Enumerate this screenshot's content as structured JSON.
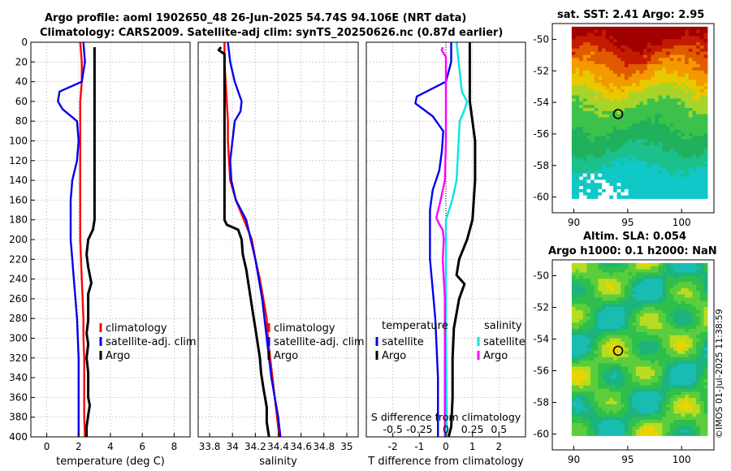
{
  "header": {
    "title_line1": "Argo profile: aoml 1902650_48 26-Jun-2025 54.74S 94.106E (NRT data)",
    "title_line2": "Climatology: CARS2009. Satellite-adj clim: synTS_20250626.nc (0.87d earlier)"
  },
  "map_sst": {
    "title": "sat. SST: 2.41 Argo: 2.95"
  },
  "map_sla": {
    "title_line1": "Altim. SLA: 0.054",
    "title_line2": "Argo h1000: 0.1 h2000: NaN"
  },
  "footer": {
    "stamp": "©IMOS 01-Jul-2025 11:38:59"
  },
  "chart_data": [
    {
      "type": "line",
      "id": "temperature",
      "xlabel": "temperature (deg C)",
      "ylabel": "",
      "xlim": [
        -1,
        9
      ],
      "ylim": [
        400,
        0
      ],
      "x_ticks": [
        0,
        2,
        4,
        6,
        8
      ],
      "y_ticks": [
        0,
        20,
        40,
        60,
        80,
        100,
        120,
        140,
        160,
        180,
        200,
        220,
        240,
        260,
        280,
        300,
        320,
        340,
        360,
        380,
        400
      ],
      "grid": true,
      "legend": [
        "climatology",
        "satellite-adj. clim",
        "Argo"
      ],
      "series": [
        {
          "name": "climatology",
          "color": "#ff0000",
          "points": [
            [
              2.1,
              0
            ],
            [
              2.2,
              20
            ],
            [
              2.2,
              40
            ],
            [
              2.1,
              60
            ],
            [
              2.1,
              80
            ],
            [
              2.1,
              100
            ],
            [
              2.1,
              120
            ],
            [
              2.1,
              140
            ],
            [
              2.1,
              160
            ],
            [
              2.1,
              180
            ],
            [
              2.1,
              200
            ],
            [
              2.15,
              220
            ],
            [
              2.2,
              240
            ],
            [
              2.25,
              260
            ],
            [
              2.3,
              280
            ],
            [
              2.3,
              300
            ],
            [
              2.35,
              320
            ],
            [
              2.35,
              340
            ],
            [
              2.35,
              360
            ],
            [
              2.35,
              380
            ],
            [
              2.4,
              400
            ]
          ]
        },
        {
          "name": "satellite-adj. clim",
          "color": "#0000ee",
          "points": [
            [
              2.3,
              0
            ],
            [
              2.4,
              20
            ],
            [
              2.2,
              40
            ],
            [
              0.8,
              50
            ],
            [
              0.7,
              60
            ],
            [
              1.0,
              68
            ],
            [
              1.9,
              80
            ],
            [
              2.0,
              100
            ],
            [
              1.9,
              120
            ],
            [
              1.6,
              140
            ],
            [
              1.5,
              160
            ],
            [
              1.5,
              180
            ],
            [
              1.5,
              200
            ],
            [
              1.6,
              220
            ],
            [
              1.7,
              240
            ],
            [
              1.8,
              260
            ],
            [
              1.9,
              280
            ],
            [
              1.95,
              300
            ],
            [
              2.0,
              320
            ],
            [
              2.0,
              340
            ],
            [
              2.0,
              360
            ],
            [
              2.0,
              380
            ],
            [
              2.0,
              400
            ]
          ]
        },
        {
          "name": "Argo",
          "color": "#000000",
          "points": [
            [
              3.0,
              5
            ],
            [
              3.0,
              20
            ],
            [
              3.0,
              40
            ],
            [
              3.0,
              60
            ],
            [
              3.0,
              80
            ],
            [
              3.0,
              100
            ],
            [
              3.0,
              120
            ],
            [
              3.0,
              140
            ],
            [
              3.0,
              160
            ],
            [
              3.0,
              180
            ],
            [
              2.9,
              190
            ],
            [
              2.6,
              200
            ],
            [
              2.5,
              215
            ],
            [
              2.6,
              228
            ],
            [
              2.7,
              236
            ],
            [
              2.8,
              244
            ],
            [
              2.6,
              255
            ],
            [
              2.6,
              270
            ],
            [
              2.6,
              282
            ],
            [
              2.5,
              295
            ],
            [
              2.6,
              306
            ],
            [
              2.5,
              320
            ],
            [
              2.6,
              335
            ],
            [
              2.6,
              350
            ],
            [
              2.6,
              360
            ],
            [
              2.7,
              368
            ],
            [
              2.6,
              378
            ],
            [
              2.5,
              390
            ],
            [
              2.5,
              400
            ]
          ]
        }
      ]
    },
    {
      "type": "line",
      "id": "salinity",
      "xlabel": "salinity",
      "ylabel": "",
      "xlim": [
        33.7,
        35.1
      ],
      "ylim": [
        400,
        0
      ],
      "x_ticks": [
        33.8,
        34,
        34.2,
        34.4,
        34.6,
        34.8,
        35
      ],
      "x_tick_labels": [
        "33.8",
        "34",
        "34.2",
        "34.4",
        "34.6",
        "34.8",
        "35"
      ],
      "grid": true,
      "legend": [
        "climatology",
        "satellite-adj. clim",
        "Argo"
      ],
      "series": [
        {
          "name": "climatology",
          "color": "#ff0000",
          "points": [
            [
              33.93,
              0
            ],
            [
              33.93,
              20
            ],
            [
              33.94,
              40
            ],
            [
              33.95,
              60
            ],
            [
              33.96,
              80
            ],
            [
              33.96,
              100
            ],
            [
              33.97,
              120
            ],
            [
              33.98,
              140
            ],
            [
              34.03,
              160
            ],
            [
              34.1,
              180
            ],
            [
              34.17,
              200
            ],
            [
              34.2,
              220
            ],
            [
              34.24,
              240
            ],
            [
              34.27,
              260
            ],
            [
              34.3,
              280
            ],
            [
              34.31,
              300
            ],
            [
              34.33,
              320
            ],
            [
              34.35,
              340
            ],
            [
              34.37,
              360
            ],
            [
              34.39,
              380
            ],
            [
              34.41,
              400
            ]
          ]
        },
        {
          "name": "satellite-adj. clim",
          "color": "#0000ee",
          "points": [
            [
              33.96,
              0
            ],
            [
              33.98,
              20
            ],
            [
              34.02,
              40
            ],
            [
              34.08,
              60
            ],
            [
              34.07,
              70
            ],
            [
              34.02,
              80
            ],
            [
              34.0,
              100
            ],
            [
              33.98,
              120
            ],
            [
              33.99,
              140
            ],
            [
              34.03,
              160
            ],
            [
              34.12,
              180
            ],
            [
              34.16,
              200
            ],
            [
              34.2,
              220
            ],
            [
              34.23,
              240
            ],
            [
              34.26,
              260
            ],
            [
              34.28,
              280
            ],
            [
              34.3,
              300
            ],
            [
              34.32,
              320
            ],
            [
              34.34,
              340
            ],
            [
              34.37,
              360
            ],
            [
              34.4,
              380
            ],
            [
              34.42,
              400
            ]
          ]
        },
        {
          "name": "Argo",
          "color": "#000000",
          "points": [
            [
              33.9,
              5
            ],
            [
              33.88,
              8
            ],
            [
              33.93,
              12
            ],
            [
              33.93,
              20
            ],
            [
              33.93,
              40
            ],
            [
              33.93,
              60
            ],
            [
              33.93,
              80
            ],
            [
              33.93,
              100
            ],
            [
              33.93,
              120
            ],
            [
              33.93,
              140
            ],
            [
              33.93,
              160
            ],
            [
              33.93,
              180
            ],
            [
              33.95,
              185
            ],
            [
              34.05,
              190
            ],
            [
              34.08,
              200
            ],
            [
              34.09,
              215
            ],
            [
              34.12,
              230
            ],
            [
              34.14,
              245
            ],
            [
              34.16,
              260
            ],
            [
              34.18,
              275
            ],
            [
              34.2,
              290
            ],
            [
              34.22,
              305
            ],
            [
              34.24,
              320
            ],
            [
              34.25,
              335
            ],
            [
              34.27,
              350
            ],
            [
              34.3,
              370
            ],
            [
              34.3,
              385
            ],
            [
              34.32,
              400
            ]
          ]
        }
      ]
    },
    {
      "type": "line",
      "id": "differences",
      "xlabel": "T difference from climatology",
      "top_axis_label": "S difference from climatology",
      "xlim": [
        -3,
        3
      ],
      "ylim": [
        400,
        0
      ],
      "x_ticks": [
        -2,
        -1,
        0,
        1,
        2
      ],
      "top_ticks": [
        -0.5,
        -0.25,
        0,
        0.25,
        0.5
      ],
      "top_tick_labels": [
        "-0.5",
        "-0.25",
        "0",
        "0.25",
        "0.5"
      ],
      "grid": true,
      "legend_temperature": {
        "heading": "temperature",
        "items": [
          "satellite",
          "Argo"
        ]
      },
      "legend_salinity": {
        "heading": "salinity",
        "items": [
          "satellite",
          "Argo"
        ]
      },
      "series": [
        {
          "name": "temperature satellite",
          "color": "#0000ee",
          "axis": "T",
          "points": [
            [
              0.2,
              0
            ],
            [
              0.2,
              20
            ],
            [
              0.0,
              40
            ],
            [
              -1.1,
              55
            ],
            [
              -1.15,
              62
            ],
            [
              -0.5,
              75
            ],
            [
              -0.1,
              90
            ],
            [
              -0.15,
              110
            ],
            [
              -0.25,
              130
            ],
            [
              -0.5,
              150
            ],
            [
              -0.6,
              170
            ],
            [
              -0.6,
              190
            ],
            [
              -0.6,
              220
            ],
            [
              -0.5,
              250
            ],
            [
              -0.4,
              280
            ],
            [
              -0.35,
              310
            ],
            [
              -0.3,
              340
            ],
            [
              -0.3,
              370
            ],
            [
              -0.3,
              400
            ]
          ]
        },
        {
          "name": "temperature Argo",
          "color": "#000000",
          "axis": "T",
          "points": [
            [
              0.9,
              0
            ],
            [
              0.9,
              20
            ],
            [
              0.9,
              60
            ],
            [
              1.0,
              80
            ],
            [
              1.1,
              100
            ],
            [
              1.1,
              140
            ],
            [
              1.0,
              180
            ],
            [
              0.8,
              200
            ],
            [
              0.5,
              220
            ],
            [
              0.4,
              236
            ],
            [
              0.7,
              245
            ],
            [
              0.5,
              260
            ],
            [
              0.3,
              290
            ],
            [
              0.25,
              320
            ],
            [
              0.25,
              360
            ],
            [
              0.2,
              390
            ],
            [
              0.1,
              400
            ]
          ]
        },
        {
          "name": "salinity satellite",
          "color": "#00e5e5",
          "axis": "S",
          "points": [
            [
              0.1,
              0
            ],
            [
              0.12,
              20
            ],
            [
              0.15,
              50
            ],
            [
              0.2,
              60
            ],
            [
              0.17,
              70
            ],
            [
              0.13,
              80
            ],
            [
              0.12,
              100
            ],
            [
              0.11,
              120
            ],
            [
              0.1,
              140
            ],
            [
              0.06,
              160
            ],
            [
              0.0,
              180
            ],
            [
              0.0,
              200
            ],
            [
              0.0,
              300
            ],
            [
              0.01,
              400
            ]
          ]
        },
        {
          "name": "salinity Argo",
          "color": "#ff00ff",
          "axis": "S",
          "points": [
            [
              -0.03,
              5
            ],
            [
              -0.04,
              8
            ],
            [
              0.0,
              15
            ],
            [
              0.0,
              30
            ],
            [
              0.0,
              60
            ],
            [
              0.0,
              100
            ],
            [
              -0.01,
              140
            ],
            [
              -0.05,
              160
            ],
            [
              -0.09,
              178
            ],
            [
              -0.06,
              185
            ],
            [
              -0.03,
              190
            ],
            [
              -0.02,
              200
            ],
            [
              -0.03,
              220
            ],
            [
              -0.02,
              240
            ],
            [
              -0.01,
              260
            ],
            [
              -0.01,
              300
            ],
            [
              -0.01,
              400
            ]
          ]
        }
      ]
    },
    {
      "type": "heatmap",
      "id": "sst-map",
      "title": "sat. SST: 2.41 Argo: 2.95",
      "x_ticks": [
        90,
        95,
        100
      ],
      "y_ticks": [
        -50,
        -52,
        -54,
        -56,
        -58,
        -60
      ],
      "xlim": [
        88,
        103
      ],
      "ylim": [
        -61,
        -49
      ],
      "data_extent": {
        "x": [
          89.8,
          102.4
        ],
        "y": [
          -60.1,
          -49.2
        ]
      },
      "marker": {
        "lon": 94.106,
        "lat": -54.74
      }
    },
    {
      "type": "heatmap",
      "id": "sla-map",
      "title": "Altim. SLA: 0.054",
      "subtitle": "Argo h1000: 0.1 h2000: NaN",
      "x_ticks": [
        90,
        95,
        100
      ],
      "y_ticks": [
        -50,
        -52,
        -54,
        -56,
        -58,
        -60
      ],
      "xlim": [
        88,
        103
      ],
      "ylim": [
        -61,
        -49
      ],
      "data_extent": {
        "x": [
          89.8,
          102.4
        ],
        "y": [
          -60.1,
          -49.2
        ]
      },
      "marker": {
        "lon": 94.106,
        "lat": -54.74
      }
    }
  ]
}
